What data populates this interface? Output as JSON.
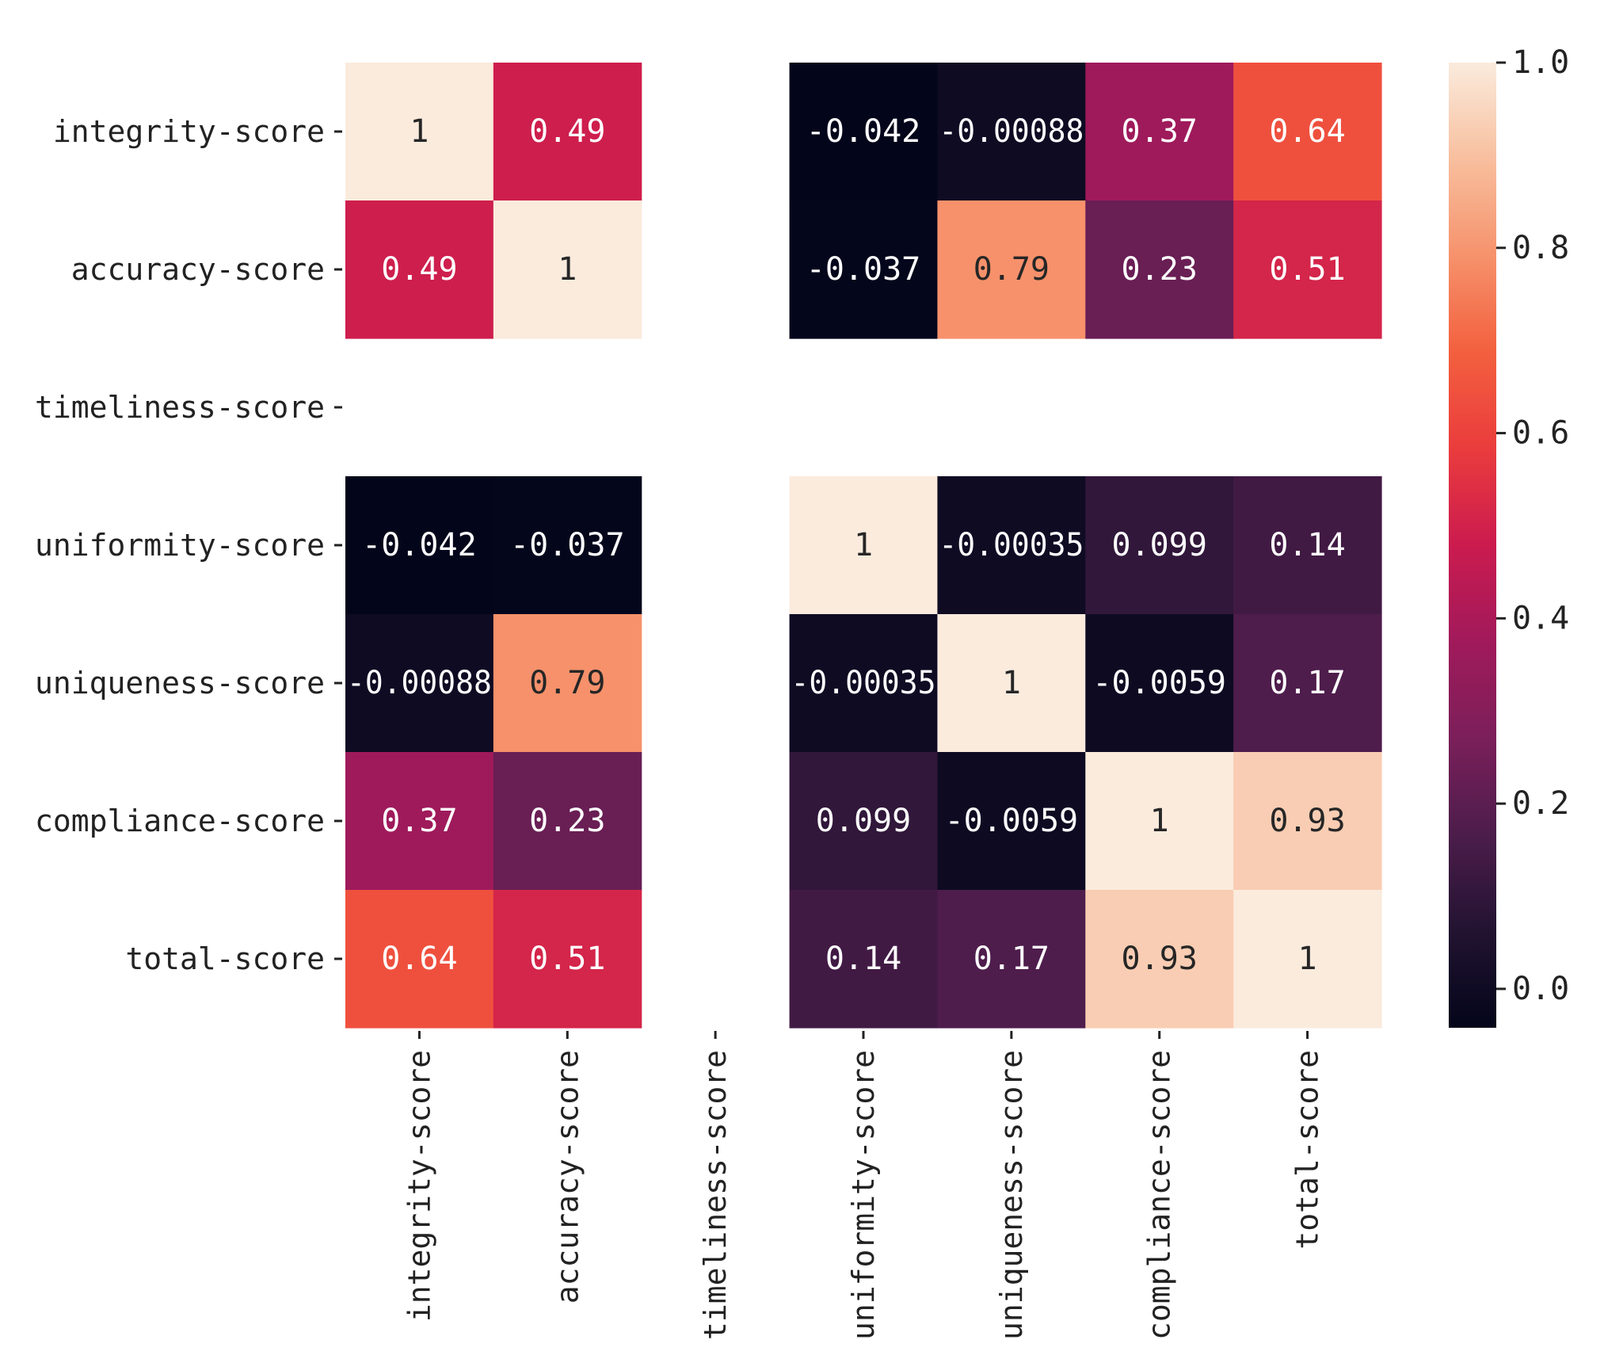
{
  "chart_data": {
    "type": "heatmap",
    "rows": [
      "integrity-score",
      "accuracy-score",
      "timeliness-score",
      "uniformity-score",
      "uniqueness-score",
      "compliance-score",
      "total-score"
    ],
    "columns": [
      "integrity-score",
      "accuracy-score",
      "timeliness-score",
      "uniformity-score",
      "uniqueness-score",
      "compliance-score",
      "total-score"
    ],
    "values": [
      [
        1,
        0.49,
        null,
        -0.042,
        -0.00088,
        0.37,
        0.64
      ],
      [
        0.49,
        1,
        null,
        -0.037,
        0.79,
        0.23,
        0.51
      ],
      [
        null,
        null,
        null,
        null,
        null,
        null,
        null
      ],
      [
        -0.042,
        -0.037,
        null,
        1,
        -0.00035,
        0.099,
        0.14
      ],
      [
        -0.00088,
        0.79,
        null,
        -0.00035,
        1,
        -0.0059,
        0.17
      ],
      [
        0.37,
        0.23,
        null,
        0.099,
        -0.0059,
        1,
        0.93
      ],
      [
        0.64,
        0.51,
        null,
        0.14,
        0.17,
        0.93,
        1
      ]
    ],
    "annotations": [
      [
        "1",
        "0.49",
        "",
        "-0.042",
        "-0.00088",
        "0.37",
        "0.64"
      ],
      [
        "0.49",
        "1",
        "",
        "-0.037",
        "0.79",
        "0.23",
        "0.51"
      ],
      [
        "",
        "",
        "",
        "",
        "",
        "",
        ""
      ],
      [
        "-0.042",
        "-0.037",
        "",
        "1",
        "-0.00035",
        "0.099",
        "0.14"
      ],
      [
        "-0.00088",
        "0.79",
        "",
        "-0.00035",
        "1",
        "-0.0059",
        "0.17"
      ],
      [
        "0.37",
        "0.23",
        "",
        "0.099",
        "-0.0059",
        "1",
        "0.93"
      ],
      [
        "0.64",
        "0.51",
        "",
        "0.14",
        "0.17",
        "0.93",
        "1"
      ]
    ],
    "colorbar": {
      "range": [
        -0.042,
        1.0
      ],
      "ticks": [
        0.0,
        0.2,
        0.4,
        0.6,
        0.8,
        1.0
      ],
      "tick_labels": [
        "0.0",
        "0.2",
        "0.4",
        "0.6",
        "0.8",
        "1.0"
      ]
    },
    "colormap": "rocket",
    "colormap_stops": [
      "#03051a",
      "#221331",
      "#4c1d4b",
      "#7b1f5a",
      "#a11a5b",
      "#cb1b4f",
      "#ea3c3d",
      "#f3603e",
      "#f6926c",
      "#f8bf9e",
      "#faebdd"
    ],
    "title": "",
    "xlabel": "",
    "ylabel": ""
  }
}
